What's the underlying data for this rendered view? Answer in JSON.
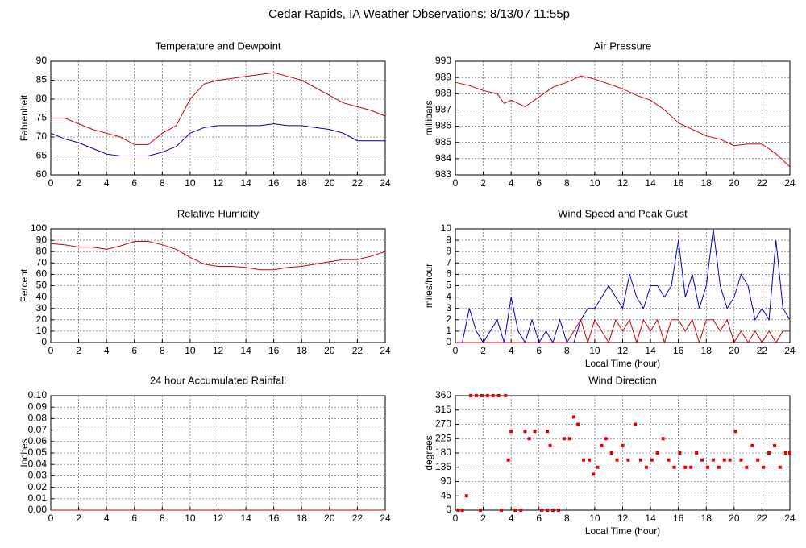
{
  "title": "Cedar Rapids, IA Weather Observations: 8/13/07 11:55p",
  "chart_data": [
    {
      "type": "line",
      "title": "Temperature and Dewpoint",
      "ylabel": "Fahrenheit",
      "x": [
        0,
        1,
        2,
        3,
        4,
        5,
        6,
        7,
        8,
        9,
        10,
        11,
        12,
        13,
        14,
        15,
        16,
        17,
        18,
        19,
        20,
        21,
        22,
        23,
        24
      ],
      "series": [
        {
          "name": "Temperature",
          "color": "#cc0000",
          "values": [
            75,
            75,
            73.5,
            72,
            71,
            70,
            68,
            68,
            71,
            73,
            80,
            84,
            85,
            85.5,
            86,
            86.5,
            87,
            86,
            85,
            83,
            81,
            79,
            78,
            77,
            75.5
          ]
        },
        {
          "name": "Dewpoint",
          "color": "#0000aa",
          "values": [
            71,
            69.5,
            68.5,
            67,
            65.5,
            65,
            65,
            65,
            66,
            67.5,
            71,
            72.5,
            73,
            73,
            73,
            73,
            73.5,
            73,
            73,
            72.5,
            72,
            71,
            69,
            69,
            69
          ]
        }
      ],
      "xlim": [
        0,
        24
      ],
      "xticks": [
        0,
        2,
        4,
        6,
        8,
        10,
        12,
        14,
        16,
        18,
        20,
        22,
        24
      ],
      "ylim": [
        60,
        90
      ],
      "yticks": [
        60,
        65,
        70,
        75,
        80,
        85,
        90
      ],
      "grid": true
    },
    {
      "type": "line",
      "title": "Air Pressure",
      "ylabel": "millibars",
      "x": [
        0,
        1,
        2,
        3,
        3.5,
        4,
        5,
        6,
        7,
        8,
        9,
        10,
        11,
        12,
        13,
        14,
        15,
        16,
        17,
        18,
        19,
        20,
        21,
        22,
        23,
        24
      ],
      "series": [
        {
          "name": "Pressure",
          "color": "#cc0000",
          "values": [
            988.7,
            988.5,
            988.2,
            988.0,
            987.4,
            987.6,
            987.2,
            987.8,
            988.4,
            988.7,
            989.1,
            988.9,
            988.6,
            988.3,
            987.9,
            987.6,
            987.0,
            986.2,
            985.8,
            985.4,
            985.2,
            984.8,
            984.9,
            984.9,
            984.3,
            983.5
          ]
        }
      ],
      "xlim": [
        0,
        24
      ],
      "xticks": [
        0,
        2,
        4,
        6,
        8,
        10,
        12,
        14,
        16,
        18,
        20,
        22,
        24
      ],
      "ylim": [
        983,
        990
      ],
      "yticks": [
        983,
        984,
        985,
        986,
        987,
        988,
        989,
        990
      ],
      "grid": true
    },
    {
      "type": "line",
      "title": "Relative Humidity",
      "ylabel": "Percent",
      "x": [
        0,
        1,
        2,
        3,
        4,
        5,
        6,
        7,
        8,
        9,
        10,
        11,
        12,
        13,
        14,
        15,
        16,
        17,
        18,
        19,
        20,
        21,
        22,
        23,
        24
      ],
      "series": [
        {
          "name": "Humidity",
          "color": "#cc0000",
          "values": [
            87,
            86,
            84,
            84,
            82,
            85,
            89,
            89,
            86,
            82,
            75,
            69,
            67,
            67,
            66,
            64,
            64,
            66,
            67,
            69,
            71,
            73,
            73,
            76,
            80
          ]
        }
      ],
      "xlim": [
        0,
        24
      ],
      "xticks": [
        0,
        2,
        4,
        6,
        8,
        10,
        12,
        14,
        16,
        18,
        20,
        22,
        24
      ],
      "ylim": [
        0,
        100
      ],
      "yticks": [
        0,
        10,
        20,
        30,
        40,
        50,
        60,
        70,
        80,
        90,
        100
      ],
      "grid": true
    },
    {
      "type": "line",
      "title": "Wind Speed and Peak Gust",
      "ylabel": "miles/hour",
      "xlabel": "Local Time (hour)",
      "x": [
        0,
        0.5,
        1,
        1.5,
        2,
        2.5,
        3,
        3.5,
        4,
        4.5,
        5,
        5.5,
        6,
        6.5,
        7,
        7.5,
        8,
        8.5,
        9,
        9.5,
        10,
        10.5,
        11,
        11.5,
        12,
        12.5,
        13,
        13.5,
        14,
        14.5,
        15,
        15.5,
        16,
        16.5,
        17,
        17.5,
        18,
        18.5,
        19,
        19.5,
        20,
        20.5,
        21,
        21.5,
        22,
        22.5,
        23,
        23.5,
        24
      ],
      "series": [
        {
          "name": "Wind Speed",
          "color": "#0000cc",
          "values": [
            0,
            0,
            3,
            1,
            0,
            1,
            2,
            0,
            4,
            1,
            0,
            2,
            0,
            1,
            0,
            2,
            0,
            0,
            2,
            3,
            3,
            4,
            5,
            4,
            3,
            6,
            4,
            3,
            5,
            5,
            4,
            5,
            9,
            4,
            6,
            3,
            5,
            10,
            5,
            3,
            4,
            6,
            5,
            2,
            3,
            2,
            9,
            3,
            2
          ]
        },
        {
          "name": "Peak Gust",
          "color": "#cc0000",
          "values": [
            0,
            0,
            0,
            0,
            0,
            0,
            0,
            0,
            0,
            0,
            0,
            0,
            0,
            0,
            0,
            0,
            0,
            1,
            2,
            0,
            2,
            1,
            0,
            2,
            1,
            2,
            0,
            2,
            1,
            2,
            0,
            2,
            2,
            1,
            2,
            0,
            2,
            2,
            1,
            2,
            0,
            1,
            0,
            1,
            0,
            1,
            0,
            1,
            1
          ]
        }
      ],
      "xlim": [
        0,
        24
      ],
      "xticks": [
        0,
        2,
        4,
        6,
        8,
        10,
        12,
        14,
        16,
        18,
        20,
        22,
        24
      ],
      "ylim": [
        0,
        10
      ],
      "yticks": [
        0,
        1,
        2,
        3,
        4,
        5,
        6,
        7,
        8,
        9,
        10
      ],
      "grid": true
    },
    {
      "type": "line",
      "title": "24 hour Accumulated Rainfall",
      "ylabel": "Inches",
      "x": [
        0,
        24
      ],
      "series": [
        {
          "name": "Rainfall",
          "color": "#cc0000",
          "values": [
            0,
            0
          ]
        }
      ],
      "xlim": [
        0,
        24
      ],
      "xticks": [
        0,
        2,
        4,
        6,
        8,
        10,
        12,
        14,
        16,
        18,
        20,
        22,
        24
      ],
      "ylim": [
        0,
        0.1
      ],
      "yticks": [
        {
          "value": 0,
          "label": "0.00"
        },
        {
          "value": 0.01,
          "label": "0.01"
        },
        {
          "value": 0.02,
          "label": "0.02"
        },
        {
          "value": 0.03,
          "label": "0.03"
        },
        {
          "value": 0.04,
          "label": "0.04"
        },
        {
          "value": 0.05,
          "label": "0.05"
        },
        {
          "value": 0.06,
          "label": "0.06"
        },
        {
          "value": 0.07,
          "label": "0.07"
        },
        {
          "value": 0.08,
          "label": "0.08"
        },
        {
          "value": 0.09,
          "label": "0.09"
        },
        {
          "value": 0.1,
          "label": "0.10"
        }
      ],
      "grid": true
    },
    {
      "type": "scatter",
      "title": "Wind Direction",
      "ylabel": "degrees",
      "xlabel": "Local Time (hour)",
      "x": [
        0.2,
        0.5,
        0.8,
        1.1,
        1.5,
        1.9,
        2.3,
        2.7,
        3.1,
        3.6,
        1.8,
        3.3,
        3.8,
        4.0,
        4.3,
        4.7,
        5.0,
        5.3,
        5.7,
        6.2,
        6.6,
        7.0,
        7.4,
        6.6,
        6.8,
        7.8,
        8.2,
        8.5,
        8.8,
        9.2,
        9.6,
        9.9,
        10.2,
        10.5,
        10.8,
        11.2,
        11.6,
        12.0,
        12.4,
        12.9,
        13.3,
        13.7,
        14.1,
        14.5,
        14.9,
        15.3,
        15.7,
        16.1,
        16.5,
        16.9,
        17.3,
        17.7,
        18.1,
        18.5,
        18.9,
        19.3,
        19.7,
        20.1,
        20.5,
        20.9,
        21.3,
        21.7,
        22.1,
        22.5,
        22.9,
        23.3,
        23.7,
        24.0
      ],
      "series": [
        {
          "name": "Direction",
          "color": "#dd0000",
          "values": [
            0,
            0,
            45,
            360,
            360,
            360,
            360,
            360,
            360,
            360,
            0,
            0,
            158,
            248,
            0,
            0,
            248,
            225,
            248,
            0,
            0,
            0,
            0,
            248,
            203,
            225,
            225,
            293,
            270,
            158,
            158,
            113,
            135,
            203,
            225,
            180,
            158,
            203,
            158,
            270,
            158,
            135,
            158,
            180,
            225,
            158,
            135,
            180,
            135,
            135,
            180,
            158,
            135,
            158,
            135,
            158,
            158,
            248,
            158,
            135,
            203,
            158,
            135,
            180,
            203,
            135,
            180,
            180
          ]
        }
      ],
      "xlim": [
        0,
        24
      ],
      "xticks": [
        0,
        2,
        4,
        6,
        8,
        10,
        12,
        14,
        16,
        18,
        20,
        22,
        24
      ],
      "ylim": [
        0,
        360
      ],
      "yticks": [
        0,
        45,
        90,
        135,
        180,
        225,
        270,
        315,
        360
      ],
      "grid": true
    }
  ]
}
